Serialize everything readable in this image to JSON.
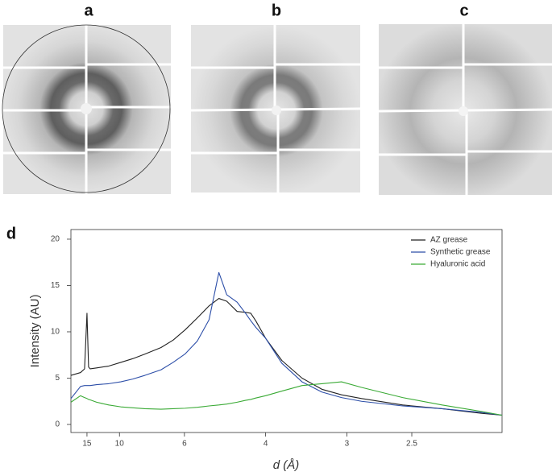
{
  "panels": [
    "a",
    "b",
    "c"
  ],
  "chart_data": {
    "type": "line",
    "panel_label": "d",
    "xlabel": "d (Å)",
    "ylabel": "Intensity (AU)",
    "xscale": "reciprocal",
    "xlim": [
      19.93,
      2.03
    ],
    "ylim": [
      -0.87,
      21.04
    ],
    "xticks": [
      15,
      10,
      6,
      4,
      3,
      2.5
    ],
    "yticks": [
      0,
      5,
      10,
      15,
      20
    ],
    "legend": "top-right",
    "x": [
      19.93,
      16.65,
      15.58,
      15.0,
      14.64,
      14.29,
      13.06,
      11.24,
      9.87,
      8.8,
      7.93,
      7.01,
      6.45,
      5.98,
      5.56,
      5.21,
      4.95,
      4.76,
      4.53,
      4.36,
      4.26,
      4.17,
      4.0,
      3.75,
      3.48,
      3.25,
      3.05,
      2.87,
      2.56,
      2.32,
      2.12,
      2.03
    ],
    "series": [
      {
        "name": "AZ grease",
        "color": "#222222",
        "values": [
          5.3,
          5.6,
          6.0,
          12.0,
          6.2,
          6.0,
          6.1,
          6.3,
          6.7,
          7.1,
          7.6,
          8.3,
          9.1,
          10.2,
          11.5,
          12.8,
          13.6,
          13.3,
          12.2,
          12.1,
          12.0,
          11.2,
          9.3,
          6.9,
          5.0,
          3.8,
          3.2,
          2.8,
          2.1,
          1.7,
          1.2,
          1.0
        ]
      },
      {
        "name": "Synthetic grease",
        "color": "#2c4ea8",
        "values": [
          2.8,
          4.1,
          4.2,
          4.2,
          4.2,
          4.2,
          4.3,
          4.4,
          4.6,
          4.9,
          5.3,
          5.9,
          6.7,
          7.6,
          9.0,
          11.3,
          16.4,
          14.0,
          13.2,
          12.0,
          11.2,
          10.5,
          9.3,
          6.6,
          4.6,
          3.5,
          2.9,
          2.5,
          2.0,
          1.7,
          1.3,
          1.0
        ]
      },
      {
        "name": "Hyaluronic acid",
        "color": "#3aaa35",
        "values": [
          2.4,
          3.1,
          2.9,
          2.8,
          2.7,
          2.65,
          2.4,
          2.1,
          1.9,
          1.8,
          1.7,
          1.65,
          1.7,
          1.75,
          1.85,
          2.0,
          2.1,
          2.2,
          2.4,
          2.6,
          2.7,
          2.85,
          3.1,
          3.6,
          4.2,
          4.4,
          4.6,
          4.0,
          2.9,
          2.1,
          1.4,
          1.0
        ]
      }
    ]
  }
}
